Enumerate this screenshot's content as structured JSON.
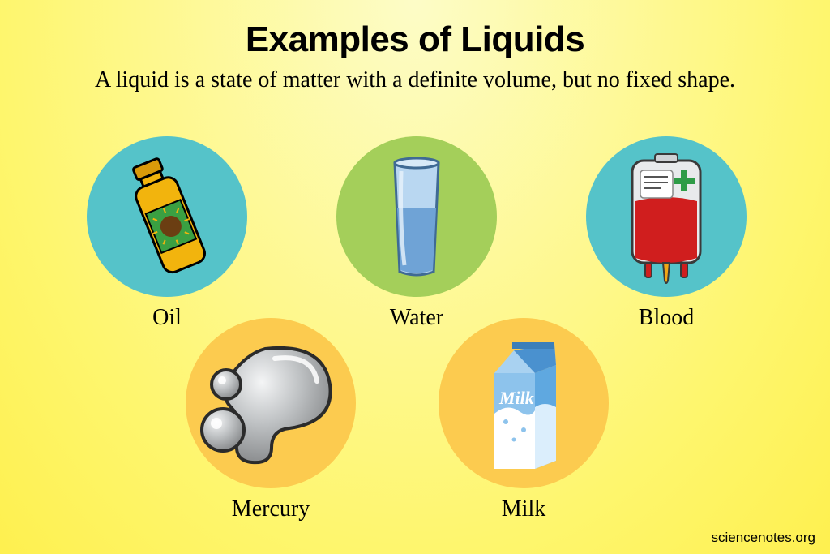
{
  "title": "Examples of Liquids",
  "subtitle": "A liquid is a state of matter with a definite volume, but no fixed shape.",
  "attribution": "sciencenotes.org",
  "circle_diameter_row1": 198,
  "circle_diameter_row2": 210,
  "label_fontsize": 28,
  "title_fontsize": 44,
  "subtitle_fontsize": 28,
  "background_gradient": [
    "#fdfcc7",
    "#fef66e",
    "#fef04f"
  ],
  "items": {
    "oil": {
      "label": "Oil",
      "bg_color": "#55c3c9",
      "icon": "oil-bottle",
      "bottle_color": "#f2b40d",
      "bottle_label_color": "#3aa042",
      "cap_color": "#d99a0a"
    },
    "water": {
      "label": "Water",
      "bg_color": "#a4cf5a",
      "icon": "water-glass",
      "glass_color": "#b9d7f1",
      "water_color": "#6fa3d6",
      "water_level": 0.55
    },
    "blood": {
      "label": "Blood",
      "bg_color": "#55c3c9",
      "icon": "blood-bag",
      "bag_color": "#e8eaec",
      "blood_color": "#d01e1e",
      "cross_color": "#2e9c47",
      "label_line_color": "#555"
    },
    "mercury": {
      "label": "Mercury",
      "bg_color": "#fccb4f",
      "icon": "mercury-blobs",
      "blob_fill": "#bfc2c4",
      "blob_highlight": "#f4f5f6",
      "blob_outline": "#2b2b2b"
    },
    "milk": {
      "label": "Milk",
      "bg_color": "#fccb4f",
      "icon": "milk-carton",
      "carton_front": "#8dc3ec",
      "carton_side": "#5fa8e0",
      "carton_top": "#4a91cf",
      "text_color": "#ffffff",
      "milk_text": "Milk"
    }
  }
}
